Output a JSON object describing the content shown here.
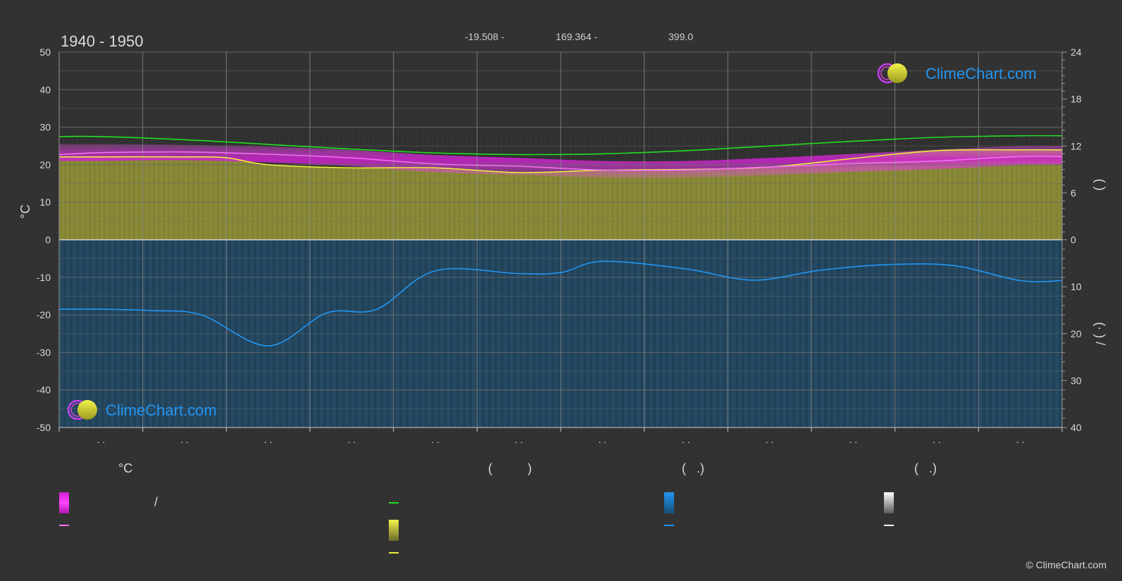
{
  "header": {
    "period": "1940 - 1950",
    "lat": "-19.508 -",
    "lon": "169.364 -",
    "elev": "399.0"
  },
  "brand": {
    "name": "ClimeChart.com",
    "copyright": "© ClimeChart.com"
  },
  "colors": {
    "background": "#323232",
    "sunshine_area": "#8f8f38",
    "precip_area": "#1e5f8c",
    "day_band": "#d020d0",
    "daylight_line": "#22dd22",
    "sunshine_line": "#ecec3c",
    "temp_line": "#f070f0",
    "precip_line": "#2196f3",
    "grid": "#6a6a6a"
  },
  "chart_data": {
    "type": "area",
    "x_months": [
      1,
      2,
      3,
      4,
      5,
      6,
      7,
      8,
      9,
      10,
      11,
      12
    ],
    "x_tick_labels": [
      ". .",
      ". .",
      ". .",
      ". .",
      ". .",
      ". .",
      ". .",
      ". .",
      ". .",
      ". .",
      ". .",
      ". ."
    ],
    "y_left": {
      "label": "°C",
      "range": [
        -50,
        50
      ],
      "ticks": [
        "50",
        "40",
        "30",
        "20",
        "10",
        "0",
        "-10",
        "-20",
        "-30",
        "-40",
        "-50"
      ]
    },
    "y_right_top": {
      "label": "(   )",
      "range": [
        0,
        24
      ],
      "ticks": [
        "24",
        "18",
        "12",
        "6",
        "0"
      ]
    },
    "y_right_bottom": {
      "label": "(· ) /",
      "range": [
        0,
        40
      ],
      "ticks": [
        "0",
        "10",
        "20",
        "30",
        "40"
      ]
    },
    "series": [
      {
        "key": "daylight_hours",
        "axis": "right_top",
        "x": [
          1,
          2,
          3,
          4,
          5,
          6,
          7,
          8,
          9,
          10,
          11,
          12,
          12.5
        ],
        "values": [
          13.2,
          12.8,
          12.2,
          11.6,
          11.1,
          10.9,
          11.0,
          11.4,
          12.0,
          12.6,
          13.1,
          13.3,
          13.3
        ]
      },
      {
        "key": "sunshine_hours",
        "axis": "right_top",
        "x": [
          0.5,
          1,
          2,
          2.5,
          3,
          4,
          5,
          6,
          7,
          8,
          9,
          10,
          11,
          12,
          12.5
        ],
        "values": [
          10.6,
          10.6,
          10.6,
          10.5,
          9.6,
          9.2,
          9.2,
          8.6,
          8.9,
          9.0,
          9.3,
          10.4,
          11.4,
          11.5,
          11.5
        ]
      },
      {
        "key": "avg_temperature",
        "axis": "left",
        "x": [
          0.5,
          1,
          2,
          3,
          4,
          5,
          6,
          7,
          8,
          9,
          10,
          11,
          12,
          12.5
        ],
        "values": [
          22.7,
          23.2,
          23.4,
          22.8,
          21.8,
          20.2,
          19.6,
          18.6,
          18.6,
          19.4,
          20.3,
          21.0,
          22.2,
          22.2
        ]
      },
      {
        "key": "max_temperature_band_top",
        "axis": "left",
        "x": [
          0.5,
          1,
          2,
          3,
          4,
          5,
          6,
          7,
          8,
          9,
          10,
          11,
          12,
          12.5
        ],
        "values": [
          25.5,
          25.5,
          25.3,
          24.8,
          23.9,
          22.6,
          21.8,
          21.0,
          21.0,
          21.8,
          22.9,
          24.0,
          25.0,
          25.0
        ]
      },
      {
        "key": "min_temperature_band_bottom",
        "axis": "left",
        "x": [
          0.5,
          1,
          2,
          3,
          4,
          5,
          6,
          7,
          8,
          9,
          10,
          11,
          12,
          12.5
        ],
        "values": [
          21.0,
          21.0,
          21.2,
          20.6,
          19.6,
          18.0,
          17.3,
          16.6,
          16.6,
          17.2,
          18.1,
          18.8,
          19.9,
          20.0
        ]
      },
      {
        "key": "precipitation_mm",
        "axis": "right_bottom",
        "x": [
          0.5,
          1,
          1.6,
          2.2,
          3,
          3.7,
          4.3,
          5,
          6,
          6.5,
          7,
          8,
          8.8,
          9.6,
          10.4,
          11.2,
          12,
          12.5
        ],
        "values": [
          14.8,
          14.8,
          15.1,
          16.0,
          22.6,
          15.6,
          14.8,
          6.6,
          7.2,
          7.0,
          4.6,
          6.2,
          8.6,
          6.5,
          5.3,
          5.5,
          8.7,
          8.7
        ]
      }
    ]
  },
  "legend": {
    "columns": [
      {
        "heading": "°C",
        "items": [
          {
            "kind": "gradient",
            "label": "/"
          },
          {
            "kind": "line",
            "label": ""
          }
        ]
      },
      {
        "heading": "(          )",
        "items": [
          {
            "kind": "line",
            "label": ""
          },
          {
            "kind": "gradient",
            "label": ""
          },
          {
            "kind": "line",
            "label": ""
          }
        ]
      },
      {
        "heading": "(   .)",
        "items": [
          {
            "kind": "gradient",
            "label": ""
          },
          {
            "kind": "line",
            "label": ""
          }
        ]
      },
      {
        "heading": "(   .)",
        "items": [
          {
            "kind": "gradient",
            "label": ""
          },
          {
            "kind": "line",
            "label": ""
          }
        ]
      }
    ]
  }
}
